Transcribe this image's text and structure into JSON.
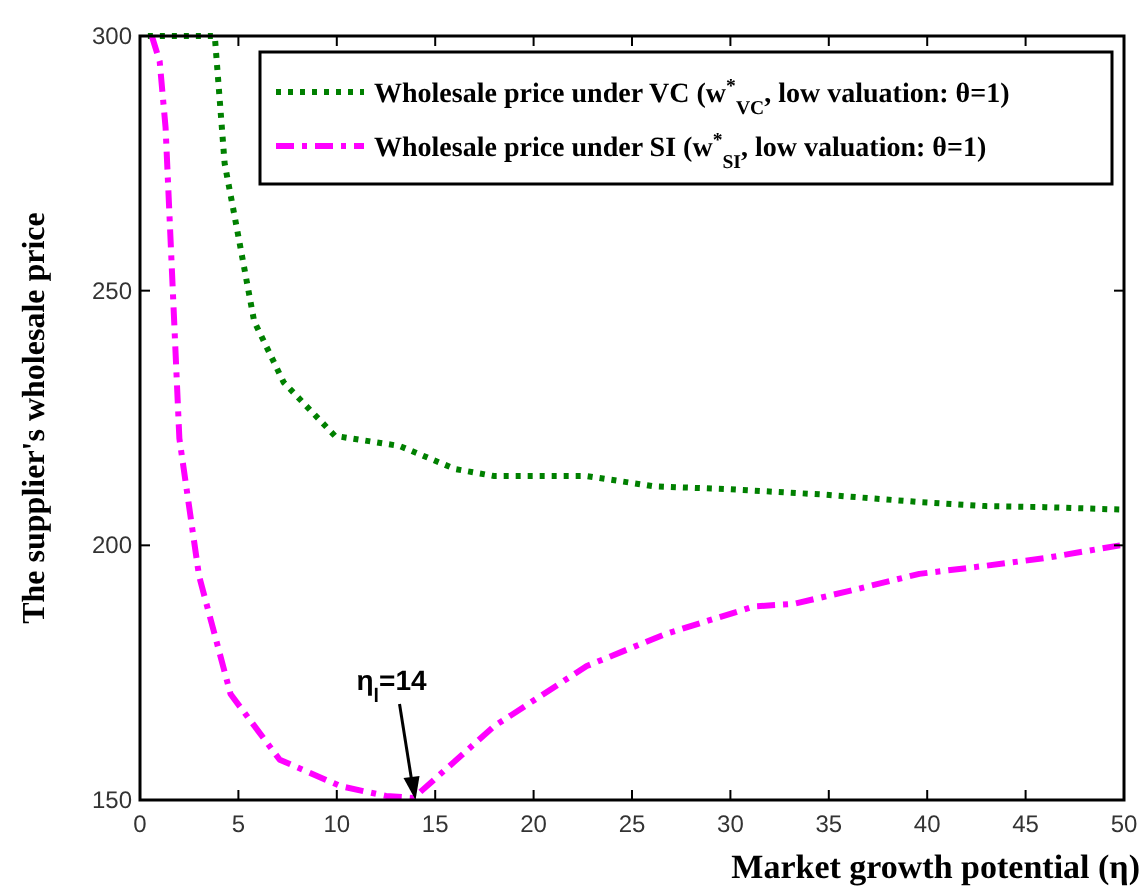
{
  "chart_data": {
    "type": "line",
    "xlabel": "Market growth potential (η)",
    "ylabel": "The supplier's wholesale price",
    "xlim": [
      0,
      50
    ],
    "ylim": [
      150,
      300
    ],
    "xticks": [
      0,
      5,
      10,
      15,
      20,
      25,
      30,
      35,
      40,
      45,
      50
    ],
    "yticks": [
      150,
      200,
      250,
      300
    ],
    "grid": false,
    "legend": "top right",
    "marker": "none",
    "series": [
      {
        "name": "Wholesale price under VC (w$^{*}$$_{VC}$, low valuation: θ=1)",
        "color": "#008000",
        "line_style": "dotted",
        "x": [
          0.4,
          2,
          3.8,
          4.0,
          4.3,
          4.9,
          5.8,
          7.3,
          9.9,
          13.2,
          16,
          18,
          22.7,
          26.1,
          30,
          34.6,
          39.6,
          43,
          46,
          50
        ],
        "values": [
          300,
          300,
          300,
          290,
          275,
          262.7,
          244,
          232,
          221.5,
          219.5,
          215,
          213.6,
          213.6,
          211.6,
          211,
          210,
          208.5,
          207.7,
          207.5,
          207
        ]
      },
      {
        "name": "Wholesale price under SI (w$^{*}$$_{SI}$, low valuation: θ=1)",
        "color": "#ff00ff",
        "line_style": "dashed",
        "x": [
          0.6,
          1.0,
          1.3,
          2.0,
          3.0,
          4.6,
          7.1,
          10.2,
          12.5,
          13.9,
          18,
          22.7,
          26.7,
          31.2,
          33.2,
          36,
          39.6,
          43,
          46,
          49.8
        ],
        "values": [
          300,
          295,
          282,
          221,
          194,
          170.8,
          157.9,
          152.7,
          150.8,
          150.4,
          164.5,
          176.3,
          182.6,
          188,
          188.5,
          191,
          194.4,
          196,
          197.5,
          200
        ]
      }
    ],
    "annotations": [
      {
        "text": "η$_{l}$=14",
        "x": 14,
        "y": 150
      }
    ]
  }
}
